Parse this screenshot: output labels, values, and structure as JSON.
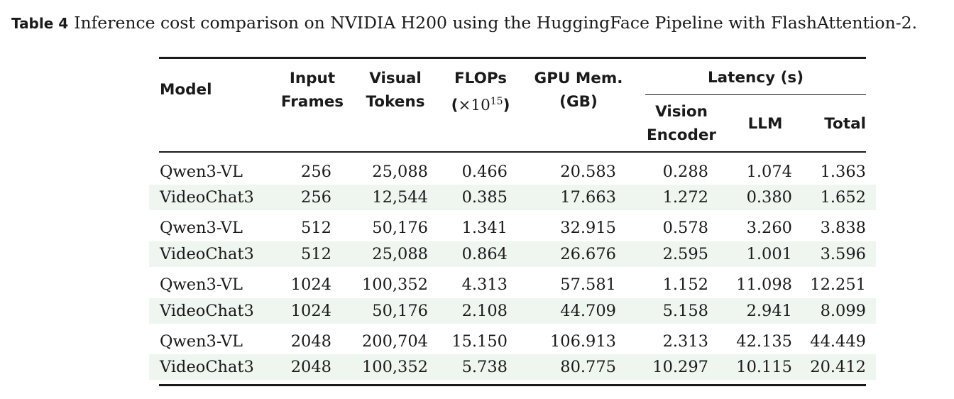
{
  "caption": {
    "label": "Table 4",
    "text": "Inference cost comparison on NVIDIA H200 using the HuggingFace Pipeline with FlashAttention-2."
  },
  "headers": {
    "model": "Model",
    "input_frames": [
      "Input",
      "Frames"
    ],
    "visual_tokens": [
      "Visual",
      "Tokens"
    ],
    "flops": {
      "line1": "FLOPs",
      "open": "(",
      "times": "×10",
      "exp": "15",
      "close": ")"
    },
    "gpu_mem": [
      "GPU Mem.",
      "(GB)"
    ],
    "latency_group": "Latency (s)",
    "vision_encoder": [
      "Vision",
      "Encoder"
    ],
    "llm": "LLM",
    "total": "Total"
  },
  "rows": [
    {
      "model": "Qwen3-VL",
      "frames": "256",
      "tokens": "25,088",
      "flops": "0.466",
      "mem": "20.583",
      "vision": "0.288",
      "llm": "1.074",
      "total": "1.363"
    },
    {
      "model": "VideoChat3",
      "frames": "256",
      "tokens": "12,544",
      "flops": "0.385",
      "mem": "17.663",
      "vision": "1.272",
      "llm": "0.380",
      "total": "1.652"
    },
    {
      "model": "Qwen3-VL",
      "frames": "512",
      "tokens": "50,176",
      "flops": "1.341",
      "mem": "32.915",
      "vision": "0.578",
      "llm": "3.260",
      "total": "3.838"
    },
    {
      "model": "VideoChat3",
      "frames": "512",
      "tokens": "25,088",
      "flops": "0.864",
      "mem": "26.676",
      "vision": "2.595",
      "llm": "1.001",
      "total": "3.596"
    },
    {
      "model": "Qwen3-VL",
      "frames": "1024",
      "tokens": "100,352",
      "flops": "4.313",
      "mem": "57.581",
      "vision": "1.152",
      "llm": "11.098",
      "total": "12.251"
    },
    {
      "model": "VideoChat3",
      "frames": "1024",
      "tokens": "50,176",
      "flops": "2.108",
      "mem": "44.709",
      "vision": "5.158",
      "llm": "2.941",
      "total": "8.099"
    },
    {
      "model": "Qwen3-VL",
      "frames": "2048",
      "tokens": "200,704",
      "flops": "15.150",
      "mem": "106.913",
      "vision": "2.313",
      "llm": "42.135",
      "total": "44.449"
    },
    {
      "model": "VideoChat3",
      "frames": "2048",
      "tokens": "100,352",
      "flops": "5.738",
      "mem": "80.775",
      "vision": "10.297",
      "llm": "10.115",
      "total": "20.412"
    }
  ]
}
